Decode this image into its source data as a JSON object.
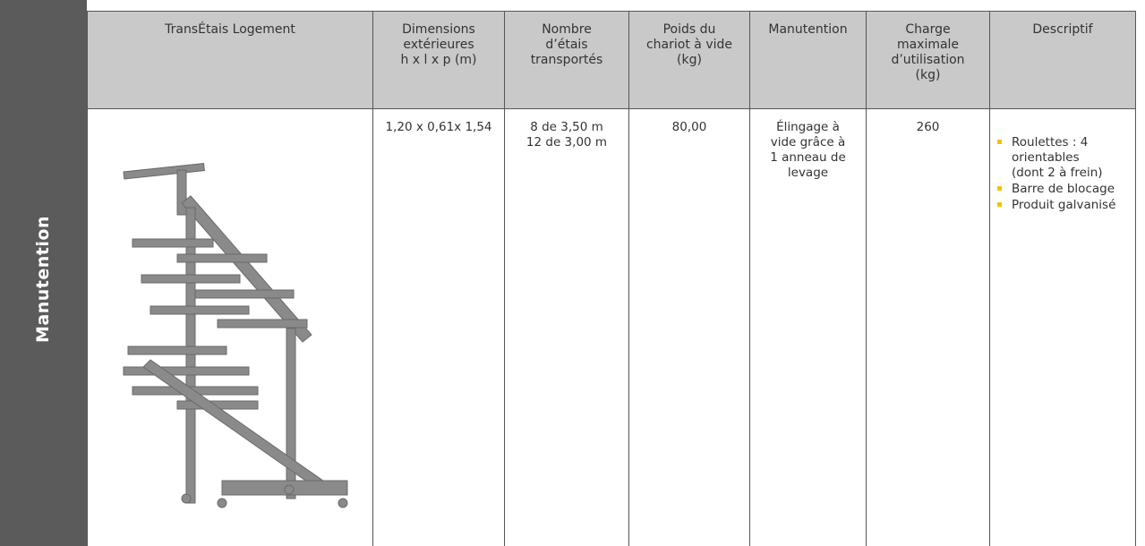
{
  "sidebar": {
    "label": "Manutention"
  },
  "table": {
    "headers": [
      "TransÉtais Logement",
      "Dimensions\nextérieures\nh x l x p (m)",
      "Nombre\nd’étais\ntransportés",
      "Poids du\nchariot à vide\n(kg)",
      "Manutention",
      "Charge\nmaximale\nd’utilisation\n(kg)",
      "Descriptif"
    ],
    "rows": [
      {
        "dimensions": "1,20 x 0,61x 1,54",
        "etais": "8 de 3,50 m\n12 de 3,00 m",
        "poids": "80,00",
        "manutention": "Élingage à\nvide grâce à\n1 anneau de\nlevage",
        "charge": "260",
        "descriptif": [
          "Roulettes : 4\norientables\n(dont 2 à frein)",
          "Barre de blocage",
          "Produit galvanisé"
        ]
      }
    ]
  }
}
